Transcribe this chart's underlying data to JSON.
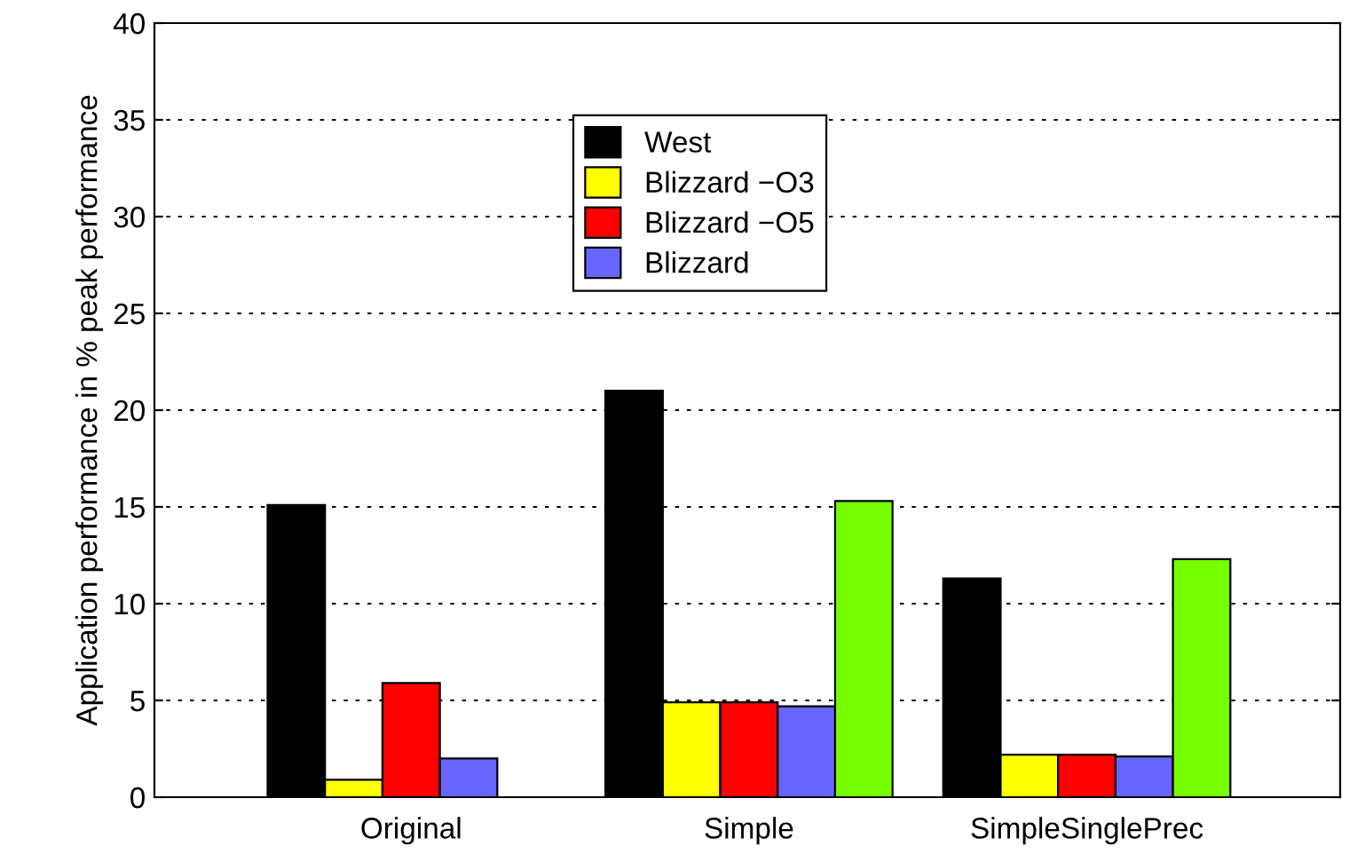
{
  "chart_data": {
    "type": "bar",
    "ylabel": "Application performance in % peak performance",
    "categories": [
      "Original",
      "Simple",
      "SimpleSinglePrec"
    ],
    "series": [
      {
        "name": "West",
        "color": "#000000",
        "values": [
          15.1,
          21.0,
          11.3
        ]
      },
      {
        "name": "Blizzard −O3",
        "color": "#ffff00",
        "values": [
          0.9,
          4.9,
          2.2
        ]
      },
      {
        "name": "Blizzard −O5",
        "color": "#ff0000",
        "values": [
          5.9,
          4.9,
          2.2
        ]
      },
      {
        "name": "Blizzard",
        "color": "#6666ff",
        "values": [
          2.0,
          4.7,
          2.1
        ]
      },
      {
        "color": "#77ff00",
        "values": [
          null,
          15.3,
          12.3
        ]
      }
    ],
    "ylim": [
      0,
      40
    ],
    "yticks": [
      0,
      5,
      10,
      15,
      20,
      25,
      30,
      35,
      40
    ],
    "grid": "y",
    "legend": "top"
  }
}
